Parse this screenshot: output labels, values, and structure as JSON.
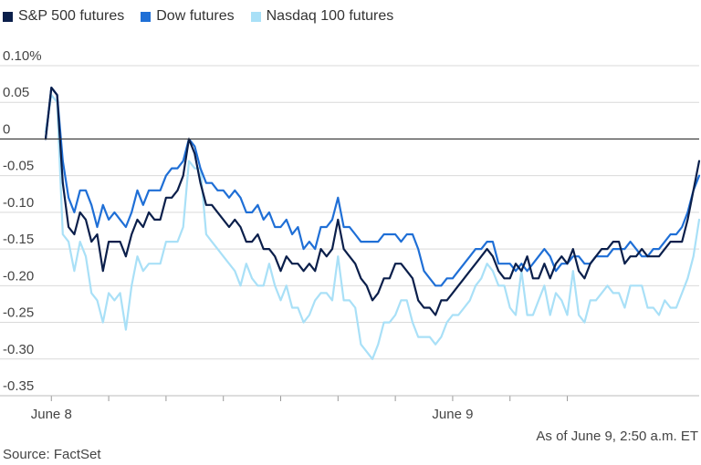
{
  "legend": [
    {
      "label": "S&P 500 futures",
      "color": "#0b1f4b"
    },
    {
      "label": "Dow futures",
      "color": "#1f6fd6"
    },
    {
      "label": "Nasdaq 100 futures",
      "color": "#a9e0f7"
    }
  ],
  "footer": {
    "note": "As of June 9, 2:50 a.m. ET",
    "source": "Source: FactSet"
  },
  "chart_data": {
    "type": "line",
    "ylim": [
      -0.35,
      0.1
    ],
    "ylabel": "",
    "xlabel": "",
    "yticks": [
      {
        "value": 0.1,
        "label": "0.10%"
      },
      {
        "value": 0.05,
        "label": "0.05"
      },
      {
        "value": 0,
        "label": "0"
      },
      {
        "value": -0.05,
        "label": "-0.05"
      },
      {
        "value": -0.1,
        "label": "-0.10"
      },
      {
        "value": -0.15,
        "label": "-0.15"
      },
      {
        "value": -0.2,
        "label": "-0.20"
      },
      {
        "value": -0.25,
        "label": "-0.25"
      },
      {
        "value": -0.3,
        "label": "-0.30"
      },
      {
        "value": -0.35,
        "label": "-0.35"
      }
    ],
    "xticks": [
      {
        "index": 1,
        "label": "June 8"
      },
      {
        "index": 11,
        "label": ""
      },
      {
        "index": 21,
        "label": ""
      },
      {
        "index": 31,
        "label": ""
      },
      {
        "index": 41,
        "label": ""
      },
      {
        "index": 51,
        "label": ""
      },
      {
        "index": 61,
        "label": ""
      },
      {
        "index": 71,
        "label": "June 9"
      },
      {
        "index": 81,
        "label": ""
      },
      {
        "index": 91,
        "label": ""
      }
    ],
    "series": [
      {
        "name": "Nasdaq 100 futures",
        "color": "#a9e0f7",
        "values": [
          0.01,
          0.06,
          0.05,
          -0.13,
          -0.14,
          -0.18,
          -0.14,
          -0.16,
          -0.21,
          -0.22,
          -0.25,
          -0.21,
          -0.22,
          -0.21,
          -0.26,
          -0.2,
          -0.16,
          -0.18,
          -0.17,
          -0.17,
          -0.17,
          -0.14,
          -0.14,
          -0.14,
          -0.12,
          -0.03,
          -0.04,
          -0.04,
          -0.13,
          -0.14,
          -0.15,
          -0.16,
          -0.17,
          -0.18,
          -0.2,
          -0.17,
          -0.19,
          -0.2,
          -0.2,
          -0.17,
          -0.2,
          -0.22,
          -0.2,
          -0.23,
          -0.23,
          -0.25,
          -0.24,
          -0.22,
          -0.21,
          -0.21,
          -0.22,
          -0.16,
          -0.22,
          -0.22,
          -0.23,
          -0.28,
          -0.29,
          -0.3,
          -0.28,
          -0.25,
          -0.25,
          -0.24,
          -0.22,
          -0.22,
          -0.25,
          -0.27,
          -0.27,
          -0.27,
          -0.28,
          -0.27,
          -0.25,
          -0.24,
          -0.24,
          -0.23,
          -0.22,
          -0.2,
          -0.19,
          -0.17,
          -0.18,
          -0.2,
          -0.2,
          -0.23,
          -0.24,
          -0.18,
          -0.24,
          -0.24,
          -0.22,
          -0.2,
          -0.24,
          -0.21,
          -0.22,
          -0.24,
          -0.18,
          -0.24,
          -0.25,
          -0.22,
          -0.22,
          -0.21,
          -0.2,
          -0.21,
          -0.21,
          -0.23,
          -0.2,
          -0.2,
          -0.2,
          -0.23,
          -0.23,
          -0.24,
          -0.22,
          -0.23,
          -0.23,
          -0.21,
          -0.19,
          -0.16,
          -0.11
        ]
      },
      {
        "name": "Dow futures",
        "color": "#1f6fd6",
        "values": [
          0.0,
          0.07,
          0.06,
          -0.03,
          -0.08,
          -0.1,
          -0.07,
          -0.07,
          -0.09,
          -0.12,
          -0.09,
          -0.11,
          -0.1,
          -0.11,
          -0.12,
          -0.1,
          -0.07,
          -0.09,
          -0.07,
          -0.07,
          -0.07,
          -0.05,
          -0.04,
          -0.04,
          -0.03,
          0.0,
          -0.01,
          -0.04,
          -0.06,
          -0.06,
          -0.07,
          -0.07,
          -0.08,
          -0.07,
          -0.08,
          -0.1,
          -0.1,
          -0.09,
          -0.11,
          -0.1,
          -0.12,
          -0.12,
          -0.11,
          -0.13,
          -0.12,
          -0.15,
          -0.14,
          -0.15,
          -0.12,
          -0.12,
          -0.11,
          -0.08,
          -0.12,
          -0.12,
          -0.13,
          -0.14,
          -0.14,
          -0.14,
          -0.14,
          -0.13,
          -0.13,
          -0.13,
          -0.14,
          -0.13,
          -0.13,
          -0.15,
          -0.18,
          -0.19,
          -0.2,
          -0.2,
          -0.19,
          -0.19,
          -0.18,
          -0.17,
          -0.16,
          -0.15,
          -0.15,
          -0.14,
          -0.14,
          -0.17,
          -0.17,
          -0.17,
          -0.18,
          -0.17,
          -0.18,
          -0.17,
          -0.16,
          -0.15,
          -0.16,
          -0.18,
          -0.17,
          -0.17,
          -0.16,
          -0.16,
          -0.17,
          -0.17,
          -0.16,
          -0.16,
          -0.16,
          -0.15,
          -0.15,
          -0.15,
          -0.14,
          -0.15,
          -0.16,
          -0.16,
          -0.15,
          -0.15,
          -0.14,
          -0.13,
          -0.13,
          -0.12,
          -0.1,
          -0.07,
          -0.05
        ]
      },
      {
        "name": "S&P 500 futures",
        "color": "#0b1f4b",
        "values": [
          0.0,
          0.07,
          0.06,
          -0.06,
          -0.12,
          -0.13,
          -0.1,
          -0.11,
          -0.14,
          -0.13,
          -0.18,
          -0.14,
          -0.14,
          -0.14,
          -0.16,
          -0.13,
          -0.11,
          -0.12,
          -0.1,
          -0.11,
          -0.11,
          -0.08,
          -0.08,
          -0.07,
          -0.05,
          0.0,
          -0.02,
          -0.06,
          -0.09,
          -0.09,
          -0.1,
          -0.11,
          -0.12,
          -0.11,
          -0.12,
          -0.14,
          -0.14,
          -0.13,
          -0.15,
          -0.15,
          -0.16,
          -0.18,
          -0.16,
          -0.17,
          -0.17,
          -0.18,
          -0.17,
          -0.18,
          -0.15,
          -0.16,
          -0.15,
          -0.11,
          -0.15,
          -0.16,
          -0.17,
          -0.19,
          -0.2,
          -0.22,
          -0.21,
          -0.19,
          -0.19,
          -0.17,
          -0.17,
          -0.18,
          -0.19,
          -0.22,
          -0.23,
          -0.23,
          -0.24,
          -0.22,
          -0.22,
          -0.21,
          -0.2,
          -0.19,
          -0.18,
          -0.17,
          -0.16,
          -0.15,
          -0.16,
          -0.18,
          -0.19,
          -0.19,
          -0.17,
          -0.18,
          -0.16,
          -0.19,
          -0.19,
          -0.17,
          -0.19,
          -0.17,
          -0.16,
          -0.17,
          -0.15,
          -0.18,
          -0.19,
          -0.17,
          -0.16,
          -0.15,
          -0.15,
          -0.14,
          -0.14,
          -0.17,
          -0.16,
          -0.16,
          -0.15,
          -0.16,
          -0.16,
          -0.16,
          -0.15,
          -0.14,
          -0.14,
          -0.14,
          -0.11,
          -0.07,
          -0.03
        ]
      }
    ]
  }
}
